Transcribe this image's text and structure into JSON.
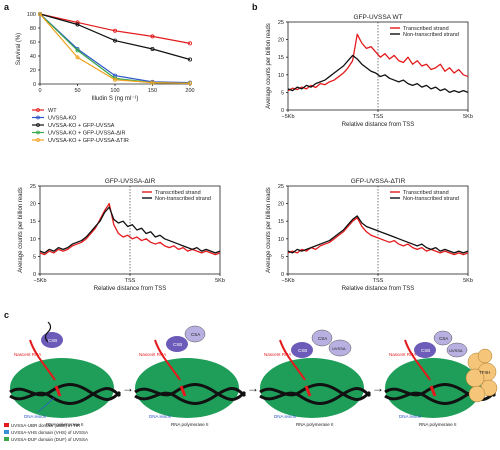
{
  "panels": {
    "a": "a",
    "b": "b",
    "c": "c"
  },
  "chart_data": [
    {
      "id": "a",
      "type": "line",
      "xlabel": "Illudin S (ng ml⁻¹)",
      "ylabel": "Survival (%)",
      "x": [
        0,
        50,
        100,
        150,
        200
      ],
      "xlim": [
        0,
        200
      ],
      "ylim": [
        0,
        100
      ],
      "xticks": [
        0,
        50,
        100,
        150,
        200
      ],
      "yticks": [
        0,
        20,
        40,
        60,
        80,
        100
      ],
      "series": [
        {
          "name": "WT",
          "color": "#e41a1c",
          "values": [
            100,
            88,
            76,
            68,
            58
          ]
        },
        {
          "name": "UVSSA-KO",
          "color": "#2c56c9",
          "values": [
            100,
            50,
            12,
            3,
            2
          ]
        },
        {
          "name": "UVSSA-KO + GFP-UVSSA",
          "color": "#111111",
          "values": [
            100,
            85,
            62,
            50,
            35
          ]
        },
        {
          "name": "UVSSA-KO + GFP-UVSSA-ΔIR",
          "color": "#3aa84a",
          "values": [
            100,
            48,
            8,
            2,
            1
          ]
        },
        {
          "name": "UVSSA-KO + GFP-UVSSA-ΔTIR",
          "color": "#f0a21f",
          "values": [
            100,
            38,
            6,
            2,
            1
          ]
        }
      ]
    },
    {
      "id": "b1",
      "type": "line",
      "title": "GFP-UVSSA WT",
      "xlabel": "Relative distance from TSS",
      "ylabel": "Average counts per billion reads",
      "xticklabels": [
        "−5Kb",
        "TSS",
        "5Kb"
      ],
      "ylim": [
        0,
        25
      ],
      "yticks": [
        0,
        5,
        10,
        15,
        20,
        25
      ],
      "legend": [
        "Transcribed strand",
        "Non-transcribed strand"
      ],
      "series": [
        {
          "name": "Transcribed strand",
          "color": "#e41a1c",
          "values": [
            5.5,
            6.2,
            5.8,
            6.5,
            6.0,
            7.0,
            6.4,
            7.5,
            7.2,
            8.0,
            8.5,
            9.5,
            10.5,
            12.0,
            14.0,
            21.5,
            19.0,
            17.5,
            18.0,
            16.5,
            15.0,
            16.0,
            14.5,
            15.5,
            14.0,
            13.5,
            15.0,
            13.0,
            14.0,
            12.5,
            13.0,
            11.5,
            12.0,
            13.0,
            11.0,
            12.0,
            10.5,
            11.5,
            10.0,
            9.5
          ]
        },
        {
          "name": "Non-transcribed strand",
          "color": "#111111",
          "values": [
            6.0,
            5.5,
            6.5,
            6.0,
            7.0,
            6.5,
            7.5,
            8.0,
            8.5,
            9.5,
            10.5,
            11.5,
            12.5,
            14.0,
            15.5,
            14.5,
            13.0,
            12.0,
            11.0,
            10.5,
            9.5,
            10.0,
            9.0,
            8.5,
            8.0,
            8.5,
            7.5,
            7.0,
            7.5,
            6.5,
            7.0,
            6.0,
            6.5,
            5.5,
            6.0,
            5.0,
            5.5,
            5.0,
            5.5,
            5.0
          ]
        }
      ]
    },
    {
      "id": "b2",
      "type": "line",
      "title": "GFP-UVSSA-ΔIR",
      "xlabel": "Relative distance from TSS",
      "ylabel": "Average counts per billion reads",
      "xticklabels": [
        "−5Kb",
        "TSS",
        "5Kb"
      ],
      "ylim": [
        0,
        25
      ],
      "yticks": [
        0,
        5,
        10,
        15,
        20,
        25
      ],
      "legend": [
        "Transcribed strand",
        "Non-transcribed strand"
      ],
      "series": [
        {
          "name": "Transcribed strand",
          "color": "#e41a1c",
          "values": [
            6.0,
            5.5,
            6.5,
            6.0,
            7.0,
            6.5,
            7.0,
            8.0,
            8.5,
            9.0,
            10.0,
            11.5,
            13.0,
            15.5,
            18.0,
            20.0,
            14.0,
            11.5,
            10.5,
            11.0,
            10.0,
            10.5,
            9.5,
            10.0,
            9.0,
            8.5,
            9.0,
            8.0,
            7.5,
            8.0,
            7.0,
            7.5,
            6.5,
            7.0,
            6.5,
            6.0,
            6.5,
            6.0,
            5.5,
            6.0
          ]
        },
        {
          "name": "Non-transcribed strand",
          "color": "#111111",
          "values": [
            6.5,
            6.0,
            7.0,
            6.5,
            7.5,
            7.0,
            7.5,
            8.5,
            9.0,
            9.5,
            10.5,
            12.0,
            13.5,
            15.0,
            17.5,
            19.0,
            15.5,
            14.5,
            15.0,
            13.5,
            14.0,
            12.5,
            13.0,
            11.5,
            12.0,
            10.5,
            11.0,
            10.0,
            9.5,
            9.0,
            8.5,
            8.0,
            7.5,
            7.0,
            7.5,
            6.5,
            7.0,
            6.5,
            6.0,
            6.5
          ]
        }
      ]
    },
    {
      "id": "b3",
      "type": "line",
      "title": "GFP-UVSSA-ΔTIR",
      "xlabel": "Relative distance from TSS",
      "ylabel": "Average counts per billion reads",
      "xticklabels": [
        "−5Kb",
        "TSS",
        "5Kb"
      ],
      "ylim": [
        0,
        25
      ],
      "yticks": [
        0,
        5,
        10,
        15,
        20,
        25
      ],
      "legend": [
        "Transcribed strand",
        "Non-transcribed strand"
      ],
      "series": [
        {
          "name": "Transcribed strand",
          "color": "#e41a1c",
          "values": [
            6.0,
            6.5,
            6.0,
            7.0,
            6.5,
            7.5,
            7.0,
            8.0,
            8.5,
            9.0,
            10.0,
            11.0,
            12.0,
            13.5,
            15.0,
            16.0,
            13.5,
            12.0,
            11.0,
            10.5,
            10.0,
            9.5,
            9.0,
            9.5,
            8.5,
            8.0,
            8.5,
            7.5,
            7.0,
            7.5,
            6.5,
            7.0,
            6.5,
            6.0,
            6.5,
            6.0,
            5.5,
            6.0,
            5.5,
            6.0
          ]
        },
        {
          "name": "Non-transcribed strand",
          "color": "#111111",
          "values": [
            6.5,
            6.0,
            7.0,
            6.5,
            7.0,
            7.5,
            8.0,
            8.5,
            9.0,
            9.5,
            10.5,
            11.5,
            12.5,
            14.0,
            15.5,
            16.5,
            14.5,
            13.5,
            13.0,
            12.5,
            12.0,
            11.5,
            11.0,
            10.5,
            10.0,
            9.5,
            9.0,
            8.5,
            8.0,
            8.5,
            7.5,
            7.0,
            7.5,
            6.5,
            7.0,
            6.5,
            6.0,
            6.5,
            6.0,
            6.5
          ]
        }
      ]
    }
  ],
  "diagram": {
    "rnap": "RNA polymerase II",
    "nascent": "Nascent RNA",
    "lesion": "DNA lesion",
    "csb": "CSB",
    "csa": "CSA",
    "uvssa": "UVSSA",
    "tfiih": "TFIIH",
    "legend": [
      {
        "text": "UVSSA-UBR domain (UBR) in TIR",
        "color": "#e41a1c"
      },
      {
        "text": "UVSSA-VHS domain (VHS) of UVSSA",
        "color": "#3a8fd9"
      },
      {
        "text": "UVSSA-DUF domain (DUF) of UVSSA",
        "color": "#3aa84a"
      }
    ]
  }
}
